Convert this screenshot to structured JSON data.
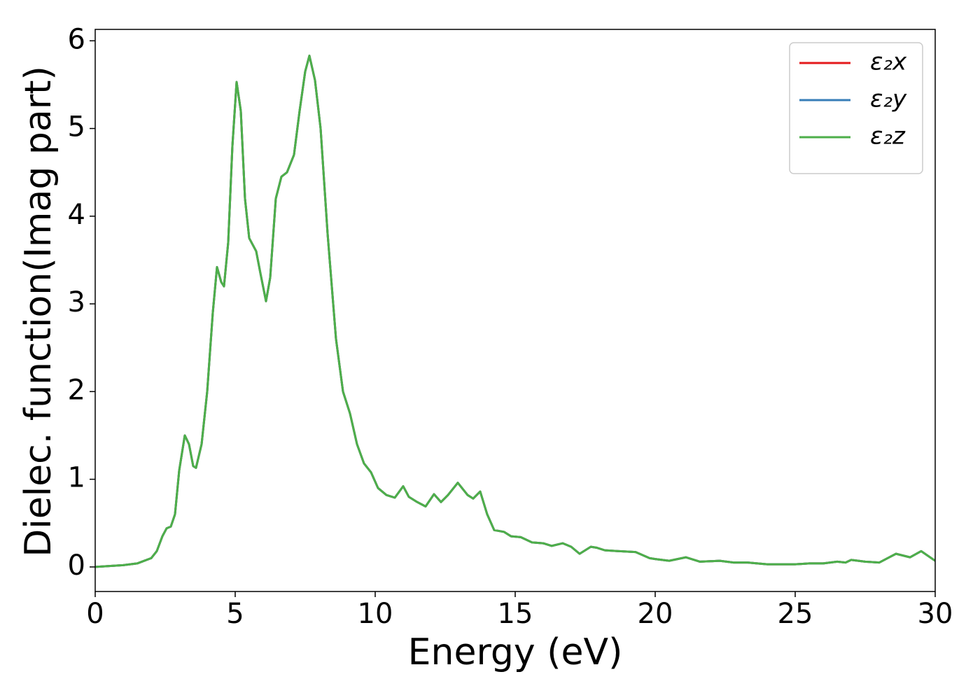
{
  "chart_data": {
    "type": "line",
    "xlabel": "Energy (eV)",
    "ylabel": "Dielec. function(Imag part)",
    "x": [
      0,
      1,
      1.5,
      2,
      2.2,
      2.4,
      2.55,
      2.7,
      2.85,
      3.0,
      3.2,
      3.35,
      3.5,
      3.6,
      3.8,
      4.0,
      4.2,
      4.35,
      4.5,
      4.6,
      4.75,
      4.9,
      5.05,
      5.2,
      5.35,
      5.5,
      5.75,
      5.9,
      6.1,
      6.25,
      6.45,
      6.65,
      6.85,
      7.1,
      7.3,
      7.5,
      7.65,
      7.85,
      8.05,
      8.3,
      8.6,
      8.85,
      9.1,
      9.35,
      9.6,
      9.85,
      10.1,
      10.4,
      10.7,
      11.0,
      11.2,
      11.5,
      11.8,
      12.1,
      12.35,
      12.6,
      12.95,
      13.3,
      13.5,
      13.75,
      14.0,
      14.25,
      14.6,
      14.85,
      15.2,
      15.6,
      16.0,
      16.3,
      16.7,
      17.0,
      17.3,
      17.7,
      17.9,
      18.2,
      18.7,
      19.3,
      19.8,
      20.0,
      20.5,
      21.1,
      21.6,
      22.3,
      22.8,
      23.3,
      24,
      25.0,
      25.5,
      26.0,
      26.5,
      26.8,
      27.0,
      27.5,
      28.0,
      28.6,
      29.1,
      29.5,
      30
    ],
    "series": [
      {
        "name": "ε₂x",
        "color": "#e41a1c",
        "values": [
          0.0,
          0.02,
          0.04,
          0.1,
          0.18,
          0.35,
          0.44,
          0.46,
          0.6,
          1.1,
          1.5,
          1.4,
          1.15,
          1.13,
          1.4,
          2.0,
          2.9,
          3.42,
          3.25,
          3.2,
          3.7,
          4.8,
          5.53,
          5.2,
          4.2,
          3.75,
          3.6,
          3.35,
          3.03,
          3.3,
          4.2,
          4.45,
          4.5,
          4.7,
          5.2,
          5.65,
          5.83,
          5.55,
          5.0,
          3.8,
          2.6,
          2.0,
          1.75,
          1.4,
          1.18,
          1.08,
          0.9,
          0.82,
          0.79,
          0.92,
          0.8,
          0.74,
          0.69,
          0.83,
          0.74,
          0.82,
          0.96,
          0.82,
          0.78,
          0.86,
          0.6,
          0.42,
          0.4,
          0.35,
          0.34,
          0.28,
          0.27,
          0.24,
          0.27,
          0.23,
          0.15,
          0.23,
          0.22,
          0.19,
          0.18,
          0.17,
          0.1,
          0.09,
          0.07,
          0.11,
          0.06,
          0.07,
          0.05,
          0.05,
          0.03,
          0.03,
          0.04,
          0.04,
          0.06,
          0.05,
          0.08,
          0.06,
          0.05,
          0.15,
          0.11,
          0.18,
          0.07
        ]
      },
      {
        "name": "ε₂y",
        "color": "#377eb8",
        "values": [
          0.0,
          0.02,
          0.04,
          0.1,
          0.18,
          0.35,
          0.44,
          0.46,
          0.6,
          1.1,
          1.5,
          1.4,
          1.15,
          1.13,
          1.4,
          2.0,
          2.9,
          3.42,
          3.25,
          3.2,
          3.7,
          4.8,
          5.53,
          5.2,
          4.2,
          3.75,
          3.6,
          3.35,
          3.03,
          3.3,
          4.2,
          4.45,
          4.5,
          4.7,
          5.2,
          5.65,
          5.83,
          5.55,
          5.0,
          3.8,
          2.6,
          2.0,
          1.75,
          1.4,
          1.18,
          1.08,
          0.9,
          0.82,
          0.79,
          0.92,
          0.8,
          0.74,
          0.69,
          0.83,
          0.74,
          0.82,
          0.96,
          0.82,
          0.78,
          0.86,
          0.6,
          0.42,
          0.4,
          0.35,
          0.34,
          0.28,
          0.27,
          0.24,
          0.27,
          0.23,
          0.15,
          0.23,
          0.22,
          0.19,
          0.18,
          0.17,
          0.1,
          0.09,
          0.07,
          0.11,
          0.06,
          0.07,
          0.05,
          0.05,
          0.03,
          0.03,
          0.04,
          0.04,
          0.06,
          0.05,
          0.08,
          0.06,
          0.05,
          0.15,
          0.11,
          0.18,
          0.07
        ]
      },
      {
        "name": "ε₂z",
        "color": "#4daf4a",
        "values": [
          0.0,
          0.02,
          0.04,
          0.1,
          0.18,
          0.35,
          0.44,
          0.46,
          0.6,
          1.1,
          1.5,
          1.4,
          1.15,
          1.13,
          1.4,
          2.0,
          2.9,
          3.42,
          3.25,
          3.2,
          3.7,
          4.8,
          5.53,
          5.2,
          4.2,
          3.75,
          3.6,
          3.35,
          3.03,
          3.3,
          4.2,
          4.45,
          4.5,
          4.7,
          5.2,
          5.65,
          5.83,
          5.55,
          5.0,
          3.8,
          2.6,
          2.0,
          1.75,
          1.4,
          1.18,
          1.08,
          0.9,
          0.82,
          0.79,
          0.92,
          0.8,
          0.74,
          0.69,
          0.83,
          0.74,
          0.82,
          0.96,
          0.82,
          0.78,
          0.86,
          0.6,
          0.42,
          0.4,
          0.35,
          0.34,
          0.28,
          0.27,
          0.24,
          0.27,
          0.23,
          0.15,
          0.23,
          0.22,
          0.19,
          0.18,
          0.17,
          0.1,
          0.09,
          0.07,
          0.11,
          0.06,
          0.07,
          0.05,
          0.05,
          0.03,
          0.03,
          0.04,
          0.04,
          0.06,
          0.05,
          0.08,
          0.06,
          0.05,
          0.15,
          0.11,
          0.18,
          0.07
        ]
      }
    ],
    "xlim": [
      0,
      30
    ],
    "xticks": [
      0,
      5,
      10,
      15,
      20,
      25,
      30
    ],
    "ylim": [
      -0.28,
      6.13
    ],
    "yticks": [
      0,
      1,
      2,
      3,
      4,
      5,
      6
    ],
    "legend": "upper right",
    "grid": false
  }
}
